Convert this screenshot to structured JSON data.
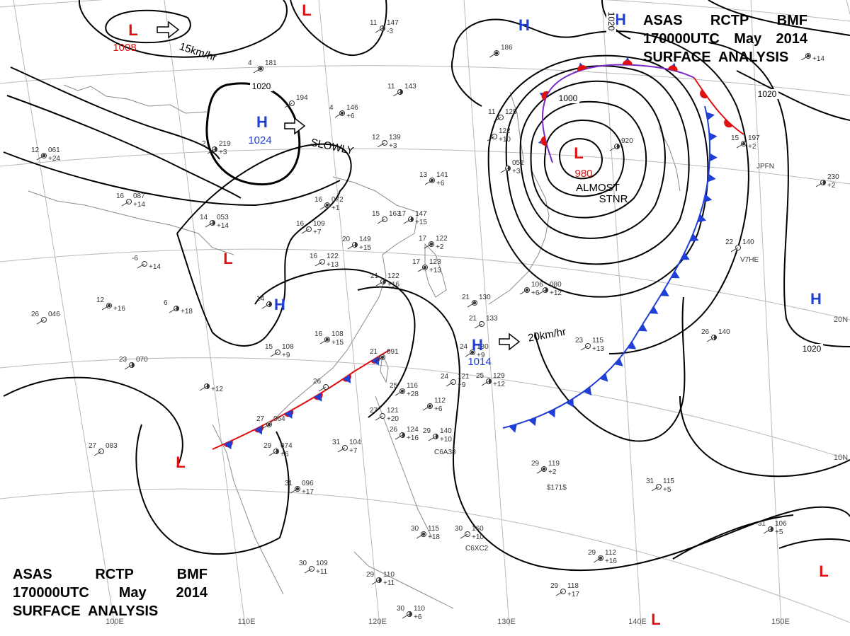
{
  "header": {
    "line1": [
      "ASAS",
      "RCTP",
      "BMF"
    ],
    "line2": [
      "170000UTC",
      "May",
      "2014"
    ],
    "line3": "SURFACE  ANALYSIS"
  },
  "colors": {
    "isobar": "#000000",
    "grid": "#b8b8b8",
    "coast": "#8a8a8a",
    "high": "#1f3fd6",
    "low": "#e01010",
    "cold_front": "#1f3fd6",
    "warm_front": "#e01010"
  },
  "grid_labels": {
    "lon": [
      "100E",
      "110E",
      "120E",
      "130E",
      "140E",
      "150E"
    ],
    "lat": [
      "20N",
      "10N"
    ]
  },
  "pressure_systems": [
    {
      "type": "L",
      "value": "1008"
    },
    {
      "type": "L",
      "value": ""
    },
    {
      "type": "H",
      "value": ""
    },
    {
      "type": "H",
      "value": "1024"
    },
    {
      "type": "L",
      "value": ""
    },
    {
      "type": "H",
      "value": ""
    },
    {
      "type": "H",
      "value": "1014"
    },
    {
      "type": "L",
      "value": ""
    },
    {
      "type": "L",
      "value": "980"
    },
    {
      "type": "H",
      "value": ""
    },
    {
      "type": "H",
      "value": ""
    },
    {
      "type": "L",
      "value": ""
    },
    {
      "type": "L",
      "value": ""
    }
  ],
  "isobar_labels": [
    "1020",
    "1000",
    "1020",
    "1020",
    "1020"
  ],
  "annotations": [
    "15km/hr",
    "SLOWLY",
    "ALMOST",
    "STNR",
    "20km/hr"
  ],
  "icon_names": [
    "motion-arrow-icon",
    "cold-front-icon",
    "warm-front-icon",
    "station-model-icon"
  ],
  "stations": [
    {
      "t": "11",
      "p": "147",
      "d": "-3"
    },
    {
      "t": "4",
      "p": "181",
      "d": ""
    },
    {
      "t": "",
      "p": "194",
      "d": ""
    },
    {
      "t": "11",
      "p": "143",
      "d": ""
    },
    {
      "t": "4",
      "p": "146",
      "d": "+6"
    },
    {
      "t": "12",
      "p": "139",
      "d": "+3"
    },
    {
      "t": "2",
      "p": "219",
      "d": "+3"
    },
    {
      "t": "12",
      "p": "061",
      "d": "+24"
    },
    {
      "t": "16",
      "p": "087",
      "d": "+14"
    },
    {
      "t": "14",
      "p": "053",
      "d": "+14"
    },
    {
      "t": "16",
      "p": "072",
      "d": "+1"
    },
    {
      "t": "15",
      "p": "163",
      "d": ""
    },
    {
      "t": "17",
      "p": "147",
      "d": "+15"
    },
    {
      "t": "13",
      "p": "141",
      "d": "+6"
    },
    {
      "t": "16",
      "p": "109",
      "d": "+7"
    },
    {
      "t": "20",
      "p": "149",
      "d": "+15"
    },
    {
      "t": "17",
      "p": "122",
      "d": "+2"
    },
    {
      "t": "16",
      "p": "122",
      "d": "+13"
    },
    {
      "t": "21",
      "p": "122",
      "d": "+16"
    },
    {
      "t": "17",
      "p": "123",
      "d": "+13"
    },
    {
      "t": "-6",
      "p": "",
      "d": "+14"
    },
    {
      "t": "6",
      "p": "",
      "d": "+18"
    },
    {
      "t": "12",
      "p": "",
      "d": "+16"
    },
    {
      "t": "26",
      "p": "046",
      "d": ""
    },
    {
      "t": "14",
      "p": "",
      "d": ""
    },
    {
      "t": "16",
      "p": "108",
      "d": "+15"
    },
    {
      "t": "15",
      "p": "108",
      "d": "+9"
    },
    {
      "t": "23",
      "p": "070",
      "d": ""
    },
    {
      "t": "21",
      "p": "091",
      "d": ""
    },
    {
      "t": "26",
      "p": "",
      "d": ""
    },
    {
      "t": "",
      "p": "",
      "d": "+12"
    },
    {
      "t": "27",
      "p": "064",
      "d": ""
    },
    {
      "t": "27",
      "p": "083",
      "d": ""
    },
    {
      "t": "29",
      "p": "074",
      "d": "+6"
    },
    {
      "t": "25",
      "p": "116",
      "d": "+28"
    },
    {
      "t": "27",
      "p": "121",
      "d": "+20"
    },
    {
      "t": "26",
      "p": "124",
      "d": "+16"
    },
    {
      "t": "",
      "p": "112",
      "d": "+6"
    },
    {
      "t": "31",
      "p": "104",
      "d": "+7"
    },
    {
      "t": "29",
      "p": "140",
      "d": "+10"
    },
    {
      "t": "31",
      "p": "096",
      "d": "+17"
    },
    {
      "t": "30",
      "p": "109",
      "d": "+11"
    },
    {
      "t": "29",
      "p": "110",
      "d": "+11"
    },
    {
      "t": "30",
      "p": "115",
      "d": "+18"
    },
    {
      "t": "30",
      "p": "160",
      "d": "+10"
    },
    {
      "t": "30",
      "p": "110",
      "d": "+6"
    },
    {
      "t": "24",
      "p": "130",
      "d": "+9"
    },
    {
      "t": "24",
      "p": "121",
      "d": "+9"
    },
    {
      "t": "25",
      "p": "129",
      "d": "+12"
    },
    {
      "t": "21",
      "p": "130",
      "d": ""
    },
    {
      "t": "21",
      "p": "133",
      "d": ""
    },
    {
      "t": "",
      "p": "080",
      "d": "+12"
    },
    {
      "t": "",
      "p": "106",
      "d": "+6"
    },
    {
      "t": "23",
      "p": "115",
      "d": "+13"
    },
    {
      "t": "26",
      "p": "140",
      "d": ""
    },
    {
      "t": "15",
      "p": "197",
      "d": "+2"
    },
    {
      "t": "22",
      "p": "140",
      "d": ""
    },
    {
      "t": "",
      "p": "230",
      "d": "+2"
    },
    {
      "t": "29",
      "p": "119",
      "d": "+2"
    },
    {
      "t": "31",
      "p": "115",
      "d": "+5"
    },
    {
      "t": "31",
      "p": "106",
      "d": "+5"
    },
    {
      "t": "29",
      "p": "112",
      "d": "+16"
    },
    {
      "t": "29",
      "p": "118",
      "d": "+17"
    },
    {
      "t": "",
      "p": "920",
      "d": ""
    },
    {
      "t": "",
      "p": "186",
      "d": ""
    },
    {
      "t": "",
      "p": "122",
      "d": "+10"
    },
    {
      "t": "",
      "p": "051",
      "d": "+3"
    },
    {
      "t": "",
      "p": "",
      "d": "+14"
    },
    {
      "t": "11",
      "p": "125",
      "d": ""
    }
  ],
  "ship_callsigns": [
    "C6A38",
    "C6XC2",
    "$171$",
    "JPFN",
    "V7HE"
  ]
}
